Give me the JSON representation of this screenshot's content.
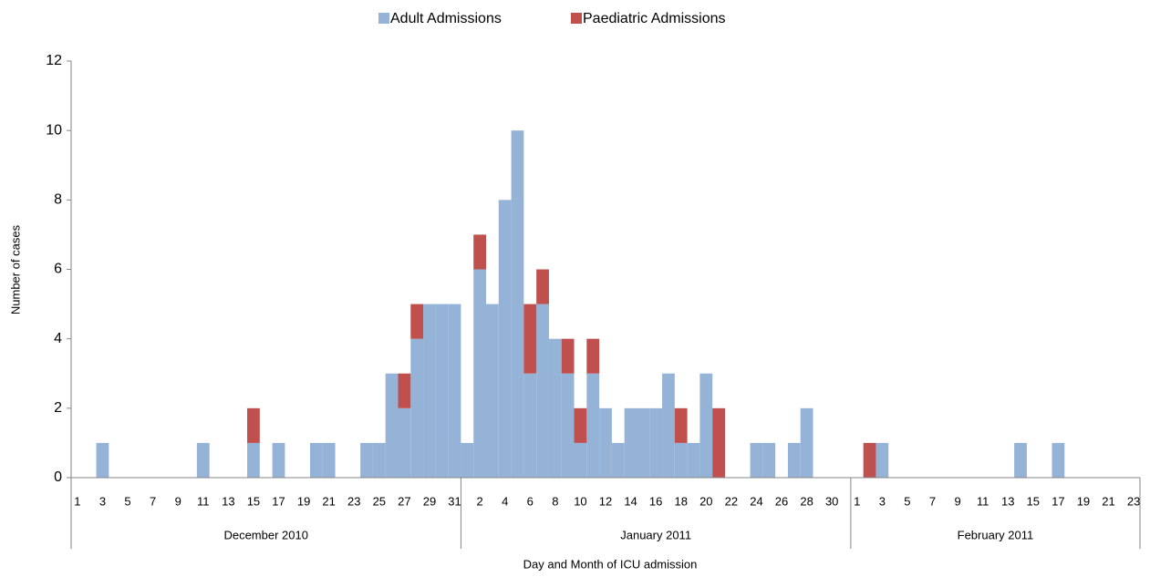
{
  "chart_data": {
    "type": "stacked_bar",
    "x_label": "Day and Month of ICU admission",
    "y_label": "Number of cases",
    "legend": "top",
    "groups": [
      "December 2010",
      "January 2011",
      "February 2011"
    ],
    "categories": [
      "1",
      null,
      "3",
      null,
      "5",
      null,
      "7",
      null,
      "9",
      null,
      "11",
      null,
      "13",
      null,
      "15",
      null,
      "17",
      null,
      "19",
      null,
      "21",
      null,
      "23",
      null,
      "25",
      null,
      "27",
      null,
      "29",
      null,
      "31",
      null,
      "2",
      null,
      "4",
      null,
      "6",
      null,
      "8",
      null,
      "10",
      null,
      "12",
      null,
      "14",
      null,
      "16",
      null,
      "18",
      null,
      "20",
      null,
      "22",
      null,
      "24",
      null,
      "26",
      null,
      "28",
      null,
      "30",
      null,
      "1",
      null,
      "3",
      null,
      "5",
      null,
      "7",
      null,
      "9",
      null,
      "11",
      null,
      "13",
      null,
      "15",
      null,
      "17",
      null,
      "19",
      null,
      "21",
      null,
      "23"
    ],
    "series": [
      {
        "name": "Adult Admissions",
        "color": "#95b3d7",
        "values": [
          0,
          0,
          1,
          0,
          0,
          0,
          0,
          0,
          0,
          0,
          1,
          0,
          0,
          0,
          1,
          0,
          1,
          0,
          0,
          1,
          1,
          0,
          0,
          1,
          1,
          3,
          2,
          4,
          5,
          5,
          5,
          1,
          6,
          5,
          8,
          10,
          3,
          5,
          4,
          3,
          1,
          3,
          2,
          1,
          2,
          2,
          2,
          3,
          1,
          1,
          3,
          0,
          0,
          0,
          1,
          1,
          0,
          1,
          2,
          0,
          0,
          0,
          0,
          0,
          1,
          0,
          0,
          0,
          0,
          0,
          0,
          0,
          0,
          0,
          0,
          1,
          0,
          0,
          1,
          0,
          0,
          0,
          0,
          0,
          0
        ]
      },
      {
        "name": "Paediatric Admissions",
        "color": "#c0504d",
        "values": [
          0,
          0,
          0,
          0,
          0,
          0,
          0,
          0,
          0,
          0,
          0,
          0,
          0,
          0,
          1,
          0,
          0,
          0,
          0,
          0,
          0,
          0,
          0,
          0,
          0,
          0,
          1,
          1,
          0,
          0,
          0,
          0,
          1,
          0,
          0,
          0,
          2,
          1,
          0,
          1,
          1,
          1,
          0,
          0,
          0,
          0,
          0,
          0,
          1,
          0,
          0,
          2,
          0,
          0,
          0,
          0,
          0,
          0,
          0,
          0,
          0,
          0,
          0,
          1,
          0,
          0,
          0,
          0,
          0,
          0,
          0,
          0,
          0,
          0,
          0,
          0,
          0,
          0,
          0,
          0,
          0,
          0,
          0,
          0,
          0
        ]
      }
    ],
    "ylim": [
      0,
      12
    ],
    "yticks": [
      0,
      2,
      4,
      6,
      8,
      10,
      12
    ],
    "grid": false
  }
}
